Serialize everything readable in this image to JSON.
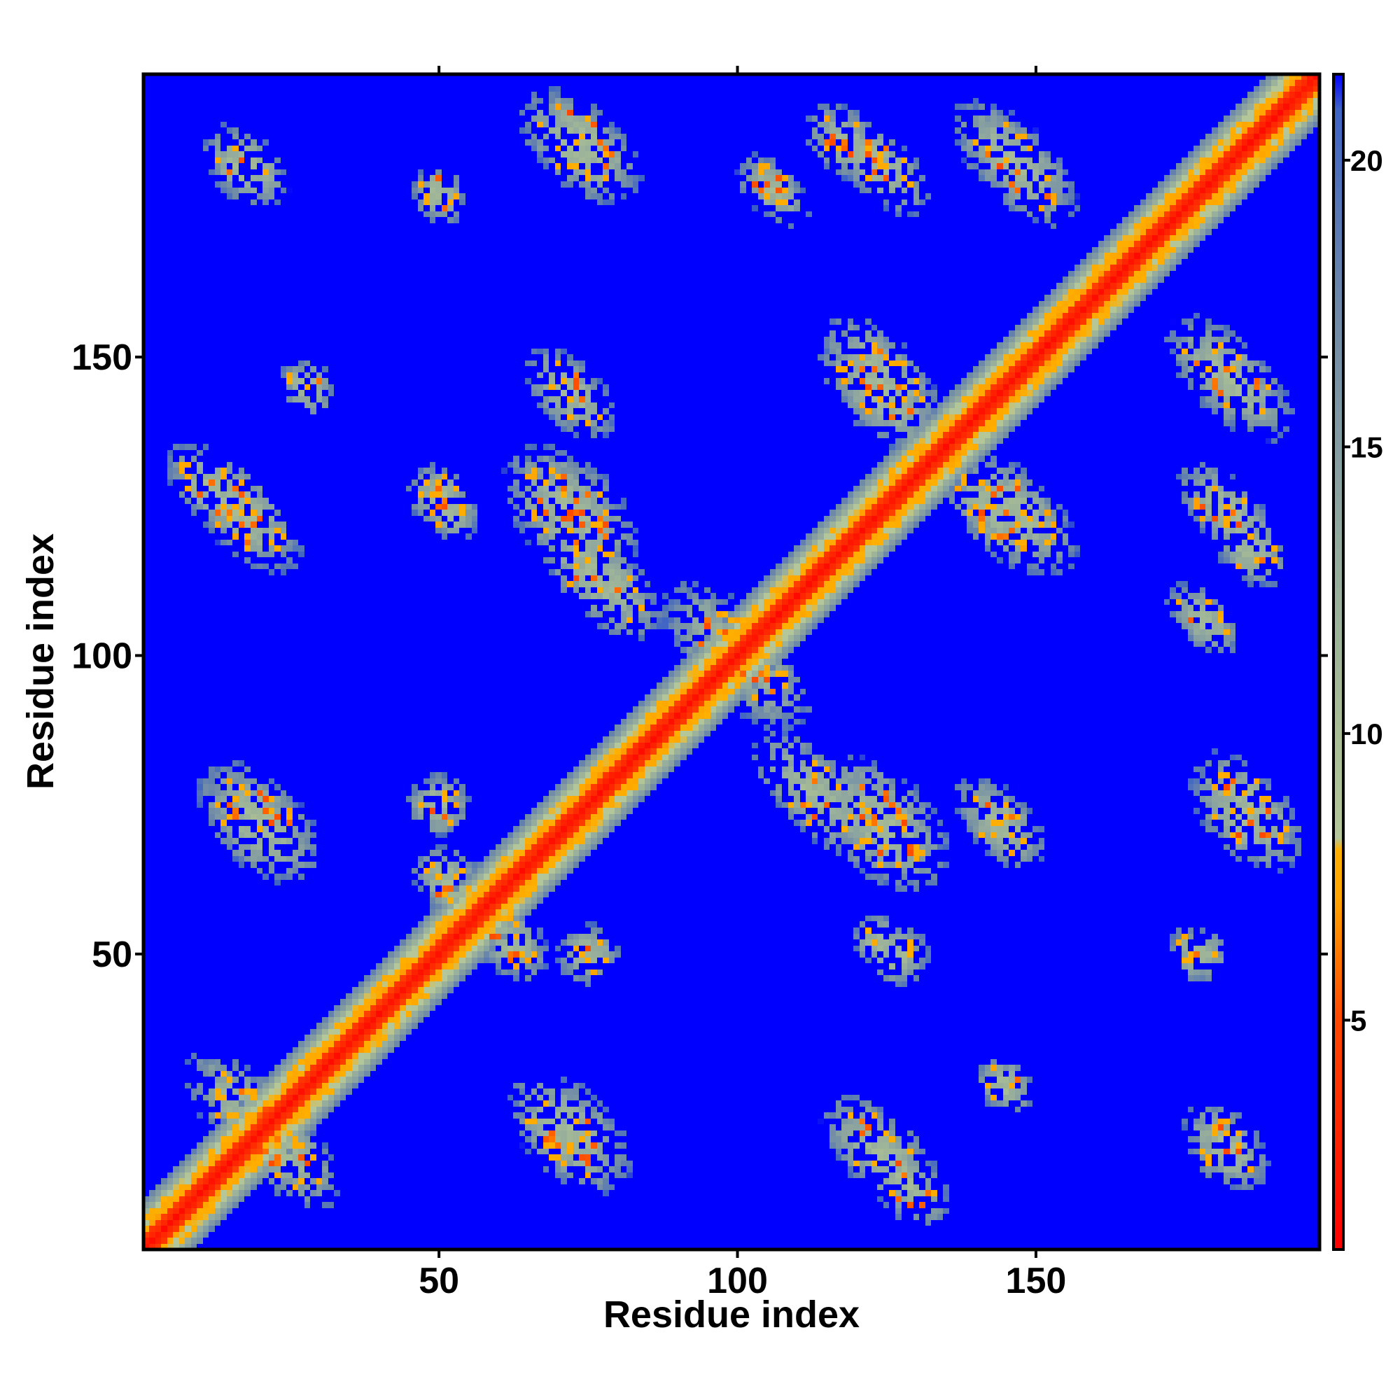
{
  "chart_data": {
    "type": "heatmap",
    "title": "",
    "xlabel": "Residue index",
    "ylabel": "Residue index",
    "xlim": [
      1,
      197
    ],
    "ylim": [
      1,
      197
    ],
    "n_residues": 197,
    "x_ticks": [
      {
        "value": 50,
        "label": "50"
      },
      {
        "value": 100,
        "label": "100"
      },
      {
        "value": 150,
        "label": "150"
      }
    ],
    "y_ticks": [
      {
        "value": 50,
        "label": "50"
      },
      {
        "value": 100,
        "label": "100"
      },
      {
        "value": 150,
        "label": "150"
      }
    ],
    "colorbar": {
      "range": [
        1,
        21.5
      ],
      "ticks": [
        {
          "value": 5,
          "label": "5"
        },
        {
          "value": 10,
          "label": "10"
        },
        {
          "value": 15,
          "label": "15"
        },
        {
          "value": 20,
          "label": "20"
        }
      ],
      "colorscale": [
        [
          0.0,
          "#ff0000"
        ],
        [
          0.2,
          "#ff4a00"
        ],
        [
          0.3,
          "#ffa500"
        ],
        [
          0.34,
          "#ffb000"
        ],
        [
          0.35,
          "#b4c79a"
        ],
        [
          0.45,
          "#a8bd95"
        ],
        [
          0.6,
          "#93aa9e"
        ],
        [
          0.8,
          "#6e89a8"
        ],
        [
          0.97,
          "#3f64c4"
        ],
        [
          1.0,
          "#0000ff"
        ]
      ]
    },
    "background_value": 21.5,
    "diagonal_profile": {
      "core_halfwidth": 2,
      "orange_halfwidth": 5,
      "green_halfwidth": 8.5
    },
    "contact_blobs": [
      {
        "cx": 18,
        "cy": 23,
        "len": 26,
        "width": 6,
        "orientation": "antidiagonal"
      },
      {
        "cx": 72,
        "cy": 20,
        "len": 24,
        "width": 7,
        "orientation": "antidiagonal"
      },
      {
        "cx": 124,
        "cy": 17,
        "len": 24,
        "width": 6,
        "orientation": "antidiagonal"
      },
      {
        "cx": 182,
        "cy": 17,
        "len": 14,
        "width": 5,
        "orientation": "antidiagonal"
      },
      {
        "cx": 20,
        "cy": 72,
        "len": 24,
        "width": 7,
        "orientation": "antidiagonal"
      },
      {
        "cx": 50,
        "cy": 75,
        "len": 10,
        "width": 5,
        "orientation": "antidiagonal"
      },
      {
        "cx": 62,
        "cy": 52,
        "len": 14,
        "width": 5,
        "orientation": "antidiagonal"
      },
      {
        "cx": 113,
        "cy": 77,
        "len": 26,
        "width": 6,
        "orientation": "antidiagonal"
      },
      {
        "cx": 144,
        "cy": 72,
        "len": 18,
        "width": 5,
        "orientation": "antidiagonal"
      },
      {
        "cx": 186,
        "cy": 75,
        "len": 22,
        "width": 5,
        "orientation": "antidiagonal"
      },
      {
        "cx": 124,
        "cy": 52,
        "len": 10,
        "width": 4,
        "orientation": "antidiagonal"
      },
      {
        "cx": 12,
        "cy": 128,
        "len": 18,
        "width": 5,
        "orientation": "antidiagonal"
      },
      {
        "cx": 72,
        "cy": 124,
        "len": 26,
        "width": 8,
        "orientation": "antidiagonal"
      },
      {
        "cx": 124,
        "cy": 147,
        "len": 24,
        "width": 6,
        "orientation": "antidiagonal"
      },
      {
        "cx": 144,
        "cy": 124,
        "len": 24,
        "width": 6,
        "orientation": "antidiagonal"
      },
      {
        "cx": 182,
        "cy": 147,
        "len": 24,
        "width": 6,
        "orientation": "antidiagonal"
      },
      {
        "cx": 186,
        "cy": 118,
        "len": 14,
        "width": 5,
        "orientation": "antidiagonal"
      },
      {
        "cx": 18,
        "cy": 182,
        "len": 16,
        "width": 5,
        "orientation": "antidiagonal"
      },
      {
        "cx": 73,
        "cy": 185,
        "len": 22,
        "width": 6,
        "orientation": "antidiagonal"
      },
      {
        "cx": 124,
        "cy": 182,
        "len": 20,
        "width": 5,
        "orientation": "antidiagonal"
      },
      {
        "cx": 146,
        "cy": 183,
        "len": 24,
        "width": 6,
        "orientation": "antidiagonal"
      },
      {
        "cx": 100,
        "cy": 100,
        "len": 30,
        "width": 7,
        "orientation": "antidiagonal"
      },
      {
        "cx": 50,
        "cy": 127,
        "len": 10,
        "width": 5,
        "orientation": "antidiagonal"
      },
      {
        "cx": 50,
        "cy": 177,
        "len": 10,
        "width": 4,
        "orientation": "antidiagonal"
      },
      {
        "cx": 106,
        "cy": 178,
        "len": 14,
        "width": 4,
        "orientation": "antidiagonal"
      },
      {
        "cx": 178,
        "cy": 50,
        "len": 8,
        "width": 4,
        "orientation": "antidiagonal"
      },
      {
        "cx": 28,
        "cy": 145,
        "len": 10,
        "width": 4,
        "orientation": "antidiagonal"
      }
    ],
    "grid": false,
    "legend": "colorbar-right"
  }
}
